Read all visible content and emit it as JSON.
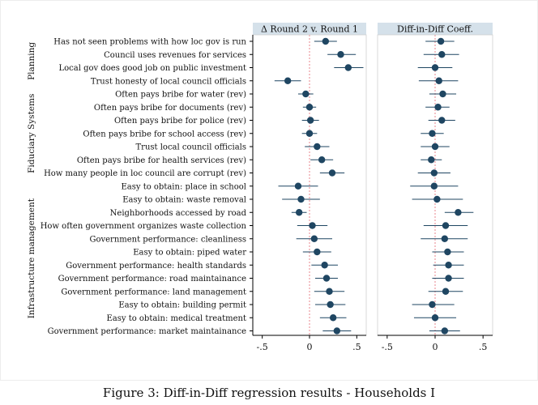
{
  "caption": "Figure 3: Diff-in-Diff regression results - Households I",
  "chart_data": {
    "type": "scatter",
    "subtype": "coefficient-plot",
    "panels": [
      {
        "title": "Δ Round 2 v. Round 1",
        "xlim": [
          -0.6,
          0.6
        ],
        "xticks": [
          -0.5,
          0,
          0.5
        ],
        "xtick_labels": [
          "-.5",
          "0",
          ".5"
        ],
        "reference_line": 0,
        "estimates": [
          0.17,
          0.33,
          0.41,
          -0.23,
          -0.04,
          0.0,
          0.01,
          0.0,
          0.08,
          0.13,
          0.24,
          -0.12,
          -0.09,
          -0.11,
          0.03,
          0.05,
          0.08,
          0.16,
          0.18,
          0.21,
          0.22,
          0.25,
          0.29
        ],
        "ci_low": [
          0.05,
          0.19,
          0.26,
          -0.37,
          -0.12,
          -0.07,
          -0.08,
          -0.08,
          -0.05,
          0.01,
          0.11,
          -0.33,
          -0.29,
          -0.19,
          -0.13,
          -0.14,
          -0.07,
          0.02,
          0.06,
          0.05,
          0.06,
          0.11,
          0.14
        ],
        "ci_high": [
          0.29,
          0.49,
          0.57,
          -0.09,
          0.04,
          0.07,
          0.1,
          0.08,
          0.21,
          0.25,
          0.37,
          0.09,
          0.11,
          -0.03,
          0.19,
          0.24,
          0.23,
          0.3,
          0.3,
          0.37,
          0.38,
          0.39,
          0.44
        ]
      },
      {
        "title": "Diff-in-Diff Coeff.",
        "xlim": [
          -0.6,
          0.6
        ],
        "xticks": [
          -0.5,
          0,
          0.5
        ],
        "xtick_labels": [
          "-.5",
          "0",
          ".5"
        ],
        "reference_line": 0,
        "estimates": [
          0.06,
          0.07,
          0.0,
          0.04,
          0.08,
          0.03,
          0.07,
          -0.03,
          0.0,
          -0.04,
          -0.01,
          -0.01,
          0.02,
          0.24,
          0.11,
          0.1,
          0.13,
          0.14,
          0.14,
          0.11,
          -0.03,
          0.0,
          0.1
        ],
        "ci_low": [
          -0.1,
          -0.12,
          -0.18,
          -0.17,
          -0.06,
          -0.1,
          -0.07,
          -0.15,
          -0.15,
          -0.15,
          -0.18,
          -0.26,
          -0.24,
          0.1,
          -0.12,
          -0.15,
          -0.03,
          -0.02,
          -0.03,
          -0.07,
          -0.24,
          -0.22,
          -0.06
        ],
        "ci_high": [
          0.2,
          0.25,
          0.18,
          0.24,
          0.22,
          0.15,
          0.21,
          0.09,
          0.15,
          0.07,
          0.16,
          0.24,
          0.29,
          0.4,
          0.34,
          0.34,
          0.3,
          0.3,
          0.3,
          0.29,
          0.2,
          0.22,
          0.26
        ]
      }
    ],
    "row_labels": [
      "Has not seen problems with how loc gov is run",
      "Council uses revenues for services",
      "Local gov does good job on public investment",
      "Trust honesty of local council officials",
      "Often pays bribe for water (rev)",
      "Often pays bribe for documents (rev)",
      "Often pays bribe for police (rev)",
      "Often pays bribe for school access (rev)",
      "Trust local council officials",
      "Often pays bribe for health services (rev)",
      "How many people in loc council are corrupt (rev)",
      "Easy to obtain: place in school",
      "Easy to obtain: waste removal",
      "Neighborhoods accessed by road",
      "How often government organizes waste collection",
      "Government performance: cleanliness",
      "Easy to obtain: piped water",
      "Government performance: health standards",
      "Government performance: road maintainance",
      "Government performance: land management",
      "Easy to obtain: building permit",
      "Easy to obtain: medical treatment",
      "Government performance: market maintainance"
    ],
    "groups": [
      {
        "name": "Planning",
        "rows": [
          0,
          3
        ]
      },
      {
        "name": "Fiduciary Systems",
        "rows": [
          4,
          10
        ]
      },
      {
        "name": "Infrastructure management",
        "rows": [
          11,
          22
        ]
      }
    ],
    "colors": {
      "marker": "#1f4662",
      "ci_line": "#1f4662",
      "reference_line": "#e8848d",
      "panel_header": "#d5e1ea",
      "axis": "#000000"
    }
  }
}
